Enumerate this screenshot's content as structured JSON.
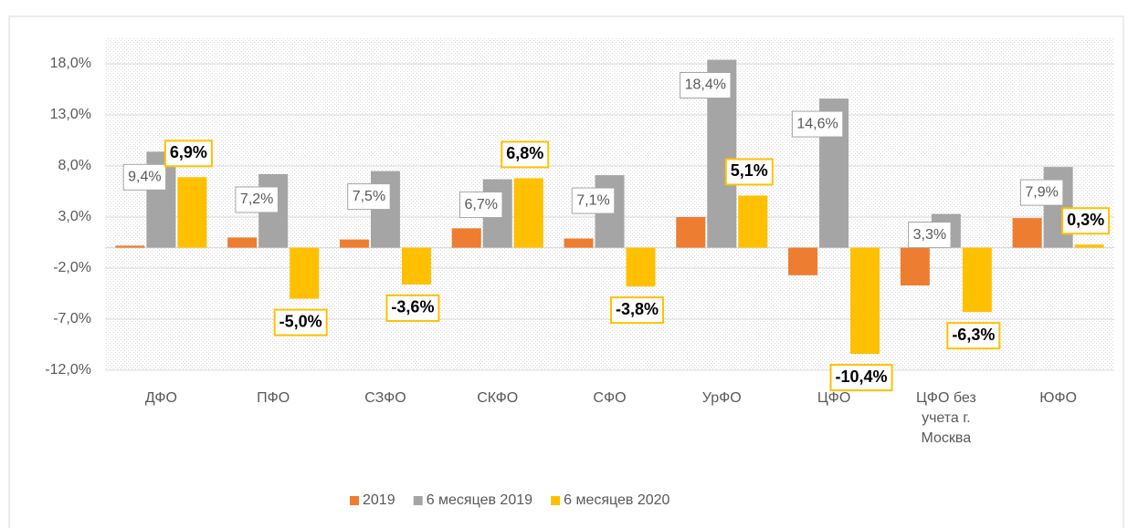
{
  "chart_data": {
    "type": "bar",
    "categories": [
      "ДФО",
      "ПФО",
      "СЗФО",
      "СКФО",
      "СФО",
      "УрФО",
      "ЦФО",
      "ЦФО без учета г. Москва",
      "ЮФО"
    ],
    "series": [
      {
        "name": "2019",
        "color": "#ed7d31",
        "values": [
          0.2,
          1.0,
          0.8,
          1.9,
          0.9,
          3.0,
          -2.7,
          -3.7,
          2.9
        ]
      },
      {
        "name": "6 месяцев 2019",
        "color": "#a5a5a5",
        "values": [
          9.4,
          7.2,
          7.5,
          6.7,
          7.1,
          18.4,
          14.6,
          3.3,
          7.9
        ],
        "value_labels": [
          "9,4%",
          "7,2%",
          "7,5%",
          "6,7%",
          "7,1%",
          "18,4%",
          "14,6%",
          "3,3%",
          "7,9%"
        ]
      },
      {
        "name": "6 месяцев 2020",
        "color": "#ffc000",
        "values": [
          6.9,
          -5.0,
          -3.6,
          6.8,
          -3.8,
          5.1,
          -10.4,
          -6.3,
          0.3
        ],
        "value_labels": [
          "6,9%",
          "-5,0%",
          "-3,6%",
          "6,8%",
          "-3,8%",
          "5,1%",
          "-10,4%",
          "-6,3%",
          "0,3%"
        ]
      }
    ],
    "ylim": [
      -12,
      20.5
    ],
    "yticks": [
      {
        "value": -12,
        "label": "-12,0%"
      },
      {
        "value": -7,
        "label": "-7,0%"
      },
      {
        "value": -2,
        "label": "-2,0%"
      },
      {
        "value": 3,
        "label": "3,0%"
      },
      {
        "value": 8,
        "label": "8,0%"
      },
      {
        "value": 13,
        "label": "13,0%"
      },
      {
        "value": 18,
        "label": "18,0%"
      }
    ],
    "grid": true,
    "legend": "bottom"
  }
}
